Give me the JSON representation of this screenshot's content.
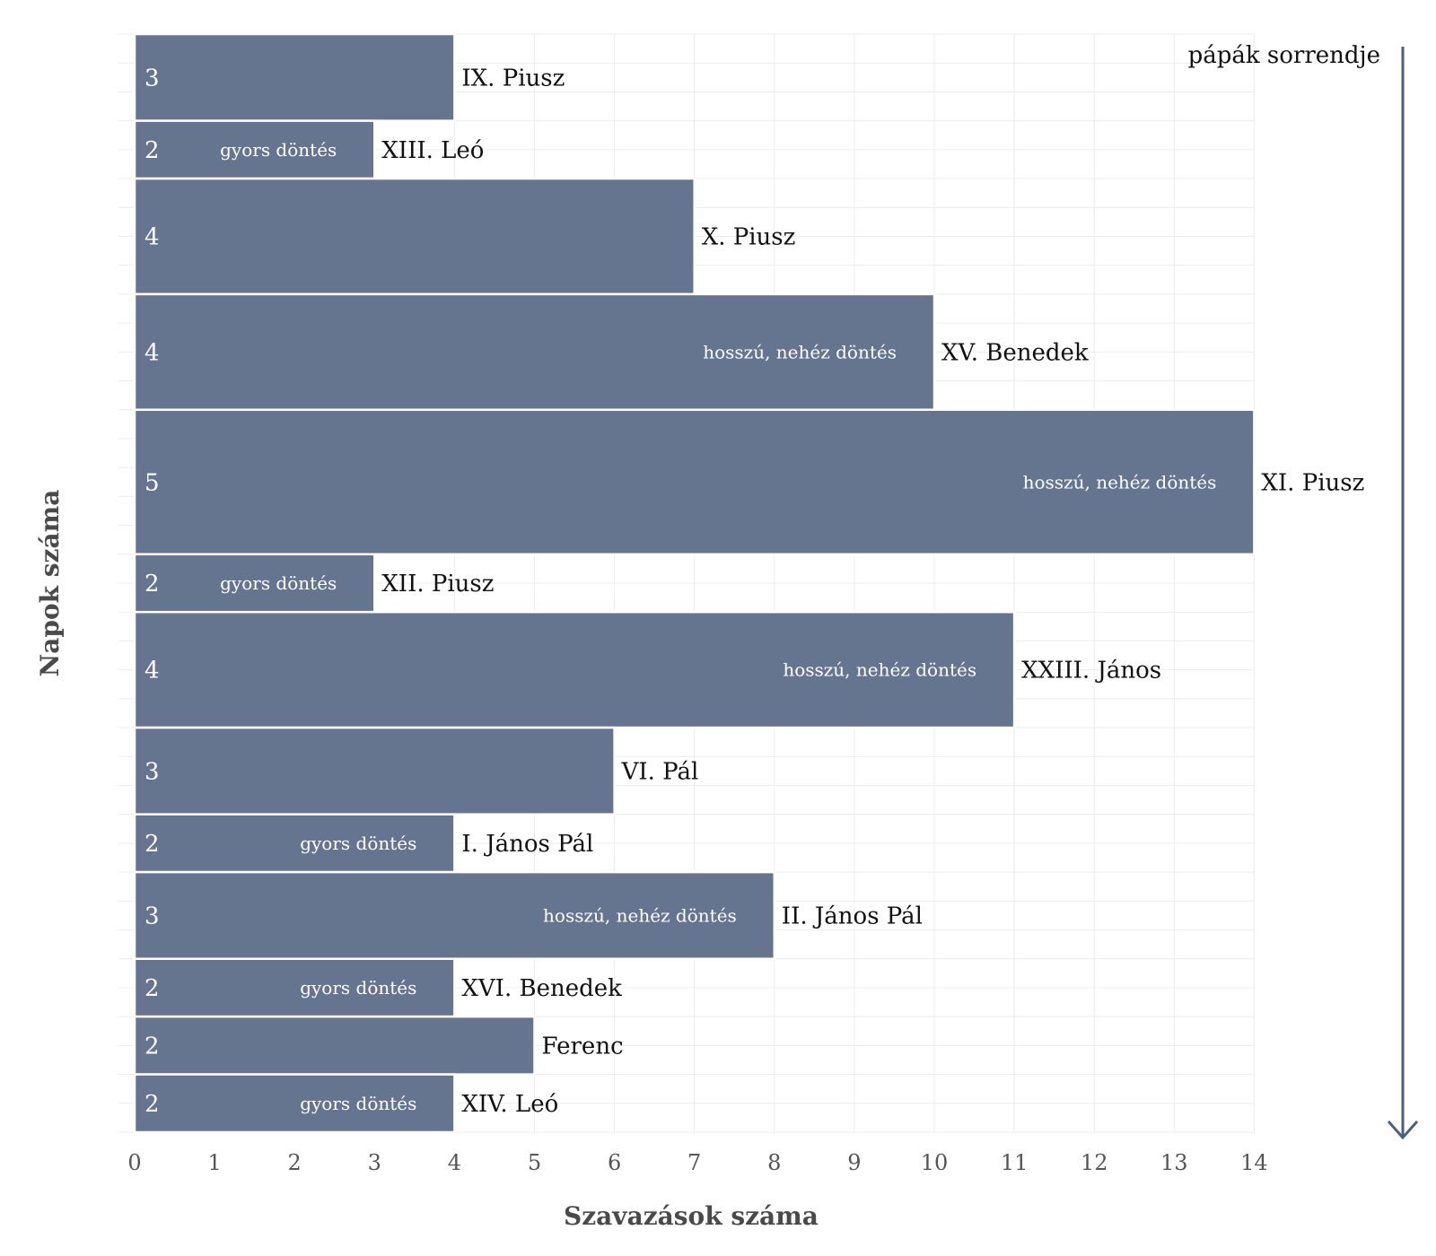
{
  "chart_data": {
    "type": "bar",
    "orientation": "horizontal",
    "xlabel": "Szavazások száma",
    "ylabel": "Napok száma",
    "xlim": [
      0,
      14
    ],
    "xticks": [
      0,
      1,
      2,
      3,
      4,
      5,
      6,
      7,
      8,
      9,
      10,
      11,
      12,
      13,
      14
    ],
    "grid": true,
    "order_label": "pápák sorrendje",
    "bar_color": "#66758f",
    "bars": [
      {
        "name": "IX. Piusz",
        "votes": 4,
        "days": 3,
        "note": ""
      },
      {
        "name": "XIII. Leó",
        "votes": 3,
        "days": 2,
        "note": "gyors döntés"
      },
      {
        "name": "X. Piusz",
        "votes": 7,
        "days": 4,
        "note": ""
      },
      {
        "name": "XV. Benedek",
        "votes": 10,
        "days": 4,
        "note": "hosszú, nehéz döntés"
      },
      {
        "name": "XI. Piusz",
        "votes": 14,
        "days": 5,
        "note": "hosszú, nehéz döntés"
      },
      {
        "name": "XII. Piusz",
        "votes": 3,
        "days": 2,
        "note": "gyors döntés"
      },
      {
        "name": "XXIII. János",
        "votes": 11,
        "days": 4,
        "note": "hosszú, nehéz döntés"
      },
      {
        "name": "VI. Pál",
        "votes": 6,
        "days": 3,
        "note": ""
      },
      {
        "name": "I. János Pál",
        "votes": 4,
        "days": 2,
        "note": "gyors döntés"
      },
      {
        "name": "II. János Pál",
        "votes": 8,
        "days": 3,
        "note": "hosszú, nehéz döntés"
      },
      {
        "name": "XVI. Benedek",
        "votes": 4,
        "days": 2,
        "note": "gyors döntés"
      },
      {
        "name": "Ferenc",
        "votes": 5,
        "days": 2,
        "note": ""
      },
      {
        "name": "XIV. Leó",
        "votes": 4,
        "days": 2,
        "note": "gyors döntés"
      }
    ]
  }
}
